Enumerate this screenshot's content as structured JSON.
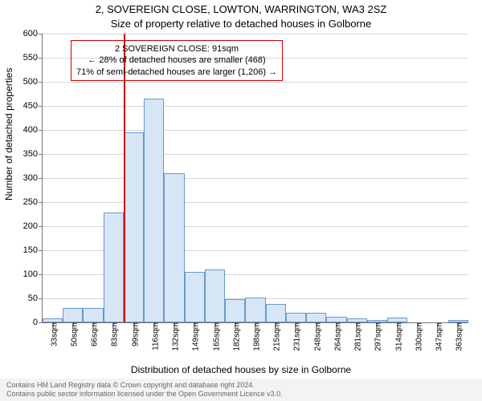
{
  "chart": {
    "type": "histogram",
    "title_line1": "2, SOVEREIGN CLOSE, LOWTON, WARRINGTON, WA3 2SZ",
    "title_line2": "Size of property relative to detached houses in Golborne",
    "title_fontsize": 13,
    "ylabel": "Number of detached properties",
    "xlabel": "Distribution of detached houses by size in Golborne",
    "label_fontsize": 12,
    "background_color": "#ffffff",
    "grid_color": "#cfd9df",
    "axis_color": "#777777",
    "bar_fill": "#d7e6f7",
    "bar_border": "#6699cc",
    "marker_line_color": "#cc0000",
    "annotation_border": "#cc0000",
    "ylim": [
      0,
      600
    ],
    "ytick_step": 50,
    "yticks": [
      0,
      50,
      100,
      150,
      200,
      250,
      300,
      350,
      400,
      450,
      500,
      550,
      600
    ],
    "categories": [
      "33sqm",
      "50sqm",
      "66sqm",
      "83sqm",
      "99sqm",
      "116sqm",
      "132sqm",
      "149sqm",
      "165sqm",
      "182sqm",
      "198sqm",
      "215sqm",
      "231sqm",
      "248sqm",
      "264sqm",
      "281sqm",
      "297sqm",
      "314sqm",
      "330sqm",
      "347sqm",
      "363sqm"
    ],
    "values": [
      8,
      30,
      30,
      228,
      395,
      465,
      310,
      105,
      110,
      48,
      52,
      38,
      20,
      20,
      12,
      8,
      5,
      10,
      0,
      0,
      5
    ],
    "marker_between_index": [
      3,
      4
    ],
    "annotation": {
      "line1": "2 SOVEREIGN CLOSE: 91sqm",
      "line2": "← 28% of detached houses are smaller (468)",
      "line3": "71% of semi-detached houses are larger (1,206) →"
    },
    "tick_fontsize": 11,
    "xtick_fontsize": 10,
    "bar_gap_ratio": 0.0
  },
  "footer": {
    "bg": "#f3f3f3",
    "color": "#666666",
    "line1": "Contains HM Land Registry data © Crown copyright and database right 2024.",
    "line2": "Contains public sector information licensed under the Open Government Licence v3.0."
  }
}
